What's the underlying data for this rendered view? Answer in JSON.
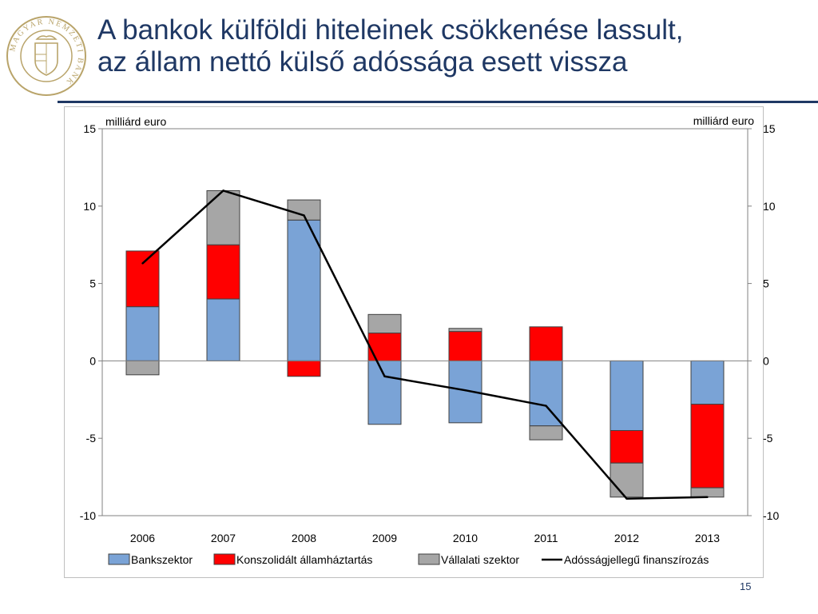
{
  "slide": {
    "title_lines": [
      "A bankok külföldi hiteleinek csökkenése lassult,",
      "az állam nettó külső adóssága esett vissza"
    ],
    "page_number": "15",
    "logo_text": "MAGYAR NEMZETI BANK"
  },
  "chart_data": {
    "type": "bar",
    "stacked": true,
    "categories": [
      "2006",
      "2007",
      "2008",
      "2009",
      "2010",
      "2011",
      "2012",
      "2013"
    ],
    "series": [
      {
        "name": "Bankszektor",
        "kind": "bar",
        "color": "#7aa3d6",
        "values": [
          3.5,
          4.0,
          9.1,
          -4.1,
          -4.0,
          -4.2,
          -4.5,
          -2.8
        ]
      },
      {
        "name": "Konszolidált államháztartás",
        "kind": "bar",
        "color": "#ff0000",
        "values": [
          3.6,
          3.5,
          -1.0,
          1.8,
          1.9,
          2.2,
          -2.1,
          -5.4
        ]
      },
      {
        "name": "Vállalati szektor",
        "kind": "bar",
        "color": "#a6a6a6",
        "values": [
          -0.9,
          3.5,
          1.3,
          1.2,
          0.2,
          -0.9,
          -2.2,
          -0.6
        ]
      },
      {
        "name": "Adósságjellegű finanszírozás",
        "kind": "line",
        "color": "#000000",
        "values": [
          6.3,
          11.0,
          9.4,
          -1.0,
          -1.9,
          -2.9,
          -8.9,
          -8.8
        ]
      }
    ],
    "y_left": {
      "label": "milliárd euro",
      "ylim": [
        -10,
        15
      ],
      "ticks": [
        15,
        10,
        5,
        0,
        -5,
        -10
      ]
    },
    "y_right": {
      "label": "milliárd euro",
      "ylim": [
        -10,
        15
      ],
      "ticks": [
        15,
        10,
        5,
        0,
        -5,
        -10
      ]
    },
    "legend": {
      "placement": "bottom"
    },
    "grid": false
  }
}
